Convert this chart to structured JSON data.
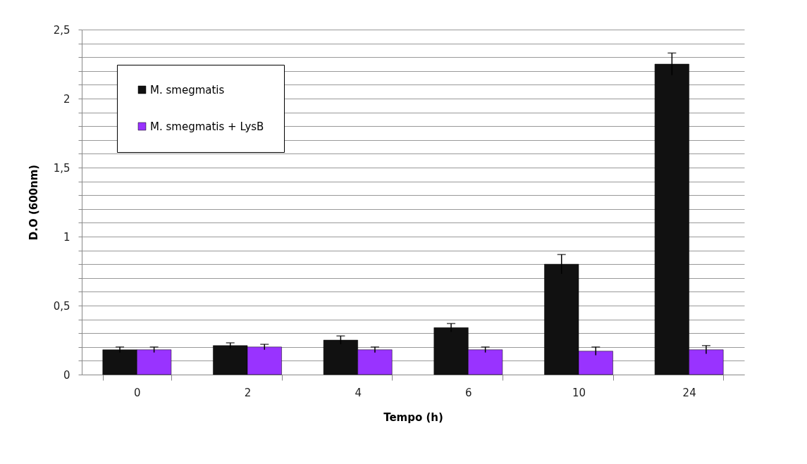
{
  "chart_data": {
    "type": "bar",
    "xlabel": "Tempo (h)",
    "ylabel": "D.O (600nm)",
    "categories": [
      "0",
      "2",
      "4",
      "6",
      "10",
      "24"
    ],
    "series": [
      {
        "name": "M. smegmatis",
        "color": "#111111",
        "values": [
          0.18,
          0.21,
          0.25,
          0.34,
          0.8,
          2.25
        ],
        "errors": [
          0.02,
          0.02,
          0.03,
          0.03,
          0.07,
          0.08
        ]
      },
      {
        "name": "M. smegmatis + LysB",
        "color": "#9933ff",
        "values": [
          0.18,
          0.2,
          0.18,
          0.18,
          0.17,
          0.18
        ],
        "errors": [
          0.02,
          0.02,
          0.02,
          0.02,
          0.03,
          0.03
        ]
      }
    ],
    "ylim": [
      0,
      2.5
    ],
    "yticks": [
      {
        "value": 0,
        "label": "0"
      },
      {
        "value": 0.1,
        "label": null
      },
      {
        "value": 0.2,
        "label": null
      },
      {
        "value": 0.3,
        "label": null
      },
      {
        "value": 0.4,
        "label": null
      },
      {
        "value": 0.5,
        "label": "0,5"
      },
      {
        "value": 0.6,
        "label": null
      },
      {
        "value": 0.7,
        "label": null
      },
      {
        "value": 0.8,
        "label": null
      },
      {
        "value": 0.9,
        "label": null
      },
      {
        "value": 1,
        "label": "1"
      },
      {
        "value": 1.1,
        "label": null
      },
      {
        "value": 1.2,
        "label": null
      },
      {
        "value": 1.3,
        "label": null
      },
      {
        "value": 1.4,
        "label": null
      },
      {
        "value": 1.5,
        "label": "1,5"
      },
      {
        "value": 1.6,
        "label": null
      },
      {
        "value": 1.7,
        "label": null
      },
      {
        "value": 1.8,
        "label": null
      },
      {
        "value": 1.9,
        "label": null
      },
      {
        "value": 2,
        "label": "2"
      },
      {
        "value": 2.1,
        "label": null
      },
      {
        "value": 2.2,
        "label": null
      },
      {
        "value": 2.3,
        "label": null
      },
      {
        "value": 2.4,
        "label": null
      },
      {
        "value": 2.5,
        "label": "2,5"
      }
    ],
    "grid": "y",
    "legend": "top left"
  }
}
